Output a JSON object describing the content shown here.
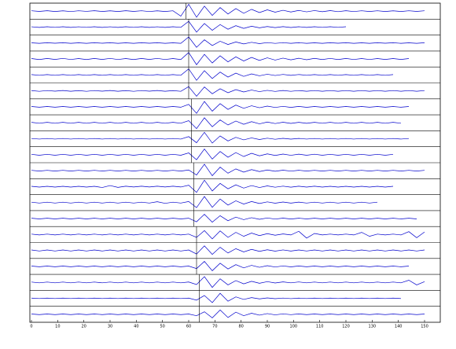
{
  "chart_data": {
    "type": "record-section",
    "x": [
      0,
      3,
      6,
      9,
      12,
      15,
      18,
      21,
      24,
      27,
      30,
      33,
      36,
      39,
      42,
      45,
      48,
      51,
      54,
      57,
      60,
      63,
      66,
      69,
      72,
      75,
      78,
      81,
      84,
      87,
      90,
      93,
      96,
      99,
      102,
      105,
      108,
      111,
      114,
      117,
      120,
      123,
      126,
      129,
      132,
      135,
      138,
      141,
      144,
      147,
      150
    ],
    "xlim": [
      0,
      156
    ],
    "ylim": [
      -1,
      1
    ],
    "xticks": [
      0,
      10,
      20,
      30,
      40,
      50,
      60,
      70,
      80,
      90,
      100,
      110,
      120,
      130,
      140,
      150
    ],
    "color": "#0000cc",
    "picks": [
      59,
      60,
      60,
      60,
      60,
      60,
      61,
      61,
      61,
      61,
      62,
      62,
      62,
      62,
      63,
      63,
      63,
      64,
      64,
      64
    ],
    "series": [
      {
        "values": [
          0.05,
          -0.04,
          0.06,
          -0.05,
          0.04,
          -0.06,
          0.05,
          -0.03,
          0.06,
          -0.05,
          0.04,
          -0.05,
          0.06,
          -0.04,
          0.05,
          -0.06,
          0.04,
          -0.05,
          0.05,
          -0.7,
          0.95,
          -0.85,
          0.7,
          -0.6,
          0.5,
          -0.4,
          0.35,
          -0.3,
          0.25,
          -0.2,
          0.18,
          -0.15,
          0.12,
          -0.12,
          0.1,
          -0.1,
          0.08,
          -0.08,
          0.07,
          -0.07,
          0.06,
          -0.06,
          0.05,
          -0.05,
          0.05,
          -0.05,
          0.04,
          -0.05,
          0.05,
          -0.04,
          0.05
        ]
      },
      {
        "values": [
          0.04,
          -0.05,
          0.05,
          -0.04,
          0.05,
          -0.05,
          0.04,
          -0.04,
          0.05,
          -0.05,
          0.04,
          -0.05,
          0.05,
          -0.04,
          0.05,
          -0.05,
          0.04,
          -0.05,
          0.05,
          -0.04,
          0.8,
          -0.7,
          0.5,
          -0.45,
          0.35,
          -0.3,
          0.2,
          -0.18,
          0.12,
          -0.1,
          0.08,
          -0.07,
          0.06,
          -0.06,
          0.05,
          -0.05,
          0.05,
          -0.04,
          0.05,
          -0.04,
          0.05,
          null,
          null,
          null,
          null,
          null,
          null,
          null,
          null,
          null,
          null
        ]
      },
      {
        "values": [
          0.03,
          -0.04,
          0.04,
          -0.03,
          0.04,
          -0.04,
          0.03,
          -0.04,
          0.04,
          -0.03,
          0.04,
          -0.04,
          0.03,
          -0.04,
          0.04,
          -0.03,
          0.04,
          -0.04,
          0.03,
          -0.04,
          0.85,
          -0.6,
          0.45,
          -0.35,
          0.25,
          -0.2,
          0.15,
          -0.12,
          0.1,
          -0.08,
          0.06,
          -0.05,
          0.05,
          -0.04,
          0.04,
          -0.04,
          0.03,
          -0.04,
          0.04,
          -0.03,
          0.04,
          -0.04,
          0.03,
          -0.04,
          0.04,
          -0.03,
          0.04,
          -0.04,
          0.03,
          -0.04,
          0.04
        ]
      },
      {
        "values": [
          0.06,
          -0.08,
          0.07,
          -0.06,
          0.08,
          -0.07,
          0.06,
          -0.08,
          0.07,
          -0.06,
          0.08,
          -0.07,
          0.06,
          -0.08,
          0.07,
          -0.06,
          0.08,
          -0.07,
          0.06,
          -0.08,
          0.9,
          -0.8,
          0.65,
          -0.55,
          0.45,
          -0.4,
          0.3,
          -0.28,
          0.22,
          -0.2,
          0.16,
          -0.15,
          0.12,
          -0.12,
          0.1,
          -0.1,
          0.09,
          -0.08,
          0.08,
          -0.08,
          0.07,
          -0.07,
          0.06,
          -0.07,
          0.06,
          -0.06,
          0.06,
          -0.06,
          0.06,
          null,
          null
        ]
      },
      {
        "values": [
          0.05,
          -0.05,
          0.05,
          -0.05,
          0.05,
          -0.05,
          0.05,
          -0.05,
          0.05,
          -0.05,
          0.05,
          -0.05,
          0.05,
          -0.05,
          0.05,
          -0.05,
          0.05,
          -0.05,
          0.05,
          -0.05,
          0.85,
          -0.75,
          0.6,
          -0.5,
          0.4,
          -0.3,
          0.25,
          -0.2,
          0.15,
          -0.12,
          0.1,
          -0.08,
          0.07,
          -0.06,
          0.06,
          -0.05,
          0.05,
          -0.05,
          0.05,
          -0.05,
          0.05,
          -0.05,
          0.05,
          -0.05,
          0.05,
          -0.05,
          0.05,
          null,
          null,
          null,
          null
        ]
      },
      {
        "values": [
          0.04,
          -0.06,
          0.05,
          -0.04,
          0.06,
          -0.05,
          0.04,
          -0.06,
          0.05,
          -0.04,
          0.06,
          -0.05,
          0.04,
          -0.06,
          0.05,
          -0.04,
          0.06,
          -0.05,
          0.04,
          -0.06,
          0.6,
          -0.75,
          0.55,
          -0.4,
          0.3,
          -0.25,
          0.18,
          -0.15,
          0.12,
          -0.1,
          0.08,
          -0.07,
          0.06,
          -0.06,
          0.05,
          -0.05,
          0.05,
          -0.05,
          0.05,
          -0.05,
          0.05,
          -0.05,
          0.05,
          -0.05,
          0.05,
          -0.05,
          0.05,
          -0.05,
          0.05,
          -0.05,
          0.05
        ]
      },
      {
        "values": [
          0.05,
          -0.05,
          0.05,
          -0.05,
          0.05,
          -0.05,
          0.05,
          -0.05,
          0.05,
          -0.05,
          0.05,
          -0.05,
          0.05,
          -0.05,
          0.05,
          -0.05,
          0.05,
          -0.05,
          0.05,
          -0.05,
          0.35,
          -0.9,
          0.75,
          -0.6,
          0.45,
          -0.35,
          0.25,
          -0.2,
          0.15,
          -0.12,
          0.1,
          -0.08,
          0.07,
          -0.07,
          0.06,
          -0.06,
          0.05,
          -0.05,
          0.05,
          -0.05,
          0.05,
          -0.05,
          0.05,
          -0.05,
          0.05,
          -0.05,
          0.05,
          -0.05,
          0.05,
          null,
          null
        ]
      },
      {
        "values": [
          0.07,
          -0.06,
          0.07,
          -0.06,
          0.07,
          -0.06,
          0.07,
          -0.06,
          0.07,
          -0.06,
          0.07,
          -0.06,
          0.07,
          -0.06,
          0.07,
          -0.06,
          0.07,
          -0.06,
          0.07,
          -0.06,
          0.3,
          -0.8,
          0.7,
          -0.55,
          0.4,
          -0.3,
          0.25,
          -0.2,
          0.16,
          -0.14,
          0.11,
          -0.1,
          0.08,
          -0.08,
          0.07,
          -0.07,
          0.07,
          -0.06,
          0.07,
          -0.06,
          0.07,
          -0.06,
          0.07,
          -0.06,
          0.07,
          -0.06,
          0.07,
          -0.06,
          null,
          null,
          null
        ]
      },
      {
        "values": [
          0.04,
          -0.04,
          0.04,
          -0.04,
          0.04,
          -0.04,
          0.04,
          -0.04,
          0.04,
          -0.04,
          0.04,
          -0.04,
          0.04,
          -0.04,
          0.04,
          -0.04,
          0.04,
          -0.04,
          0.04,
          -0.04,
          0.3,
          -0.55,
          0.9,
          -0.6,
          0.4,
          -0.3,
          0.2,
          -0.15,
          0.12,
          -0.1,
          0.08,
          -0.07,
          0.06,
          -0.05,
          0.05,
          -0.04,
          0.04,
          -0.04,
          0.04,
          -0.04,
          0.04,
          -0.04,
          0.04,
          -0.04,
          0.04,
          -0.04,
          0.04,
          -0.04,
          0.04,
          null,
          null
        ]
      },
      {
        "values": [
          0.06,
          -0.07,
          0.06,
          -0.07,
          0.06,
          -0.07,
          0.06,
          -0.07,
          0.06,
          -0.07,
          0.06,
          -0.07,
          0.06,
          -0.07,
          0.06,
          -0.07,
          0.06,
          -0.07,
          0.06,
          -0.07,
          0.25,
          -0.7,
          0.8,
          -0.6,
          0.45,
          -0.35,
          0.3,
          -0.25,
          0.2,
          -0.15,
          0.12,
          -0.1,
          0.09,
          -0.08,
          0.08,
          -0.07,
          0.07,
          -0.07,
          0.06,
          -0.07,
          0.06,
          -0.07,
          0.06,
          -0.07,
          0.06,
          -0.07,
          0.06,
          null,
          null,
          null,
          null
        ]
      },
      {
        "values": [
          0.05,
          -0.05,
          0.05,
          -0.05,
          0.05,
          -0.05,
          0.05,
          -0.05,
          0.05,
          -0.05,
          0.05,
          -0.05,
          0.05,
          -0.05,
          0.05,
          -0.05,
          0.05,
          -0.05,
          0.05,
          -0.05,
          0.1,
          -0.6,
          0.9,
          -0.7,
          0.5,
          -0.35,
          0.25,
          -0.2,
          0.15,
          -0.12,
          0.1,
          -0.08,
          0.07,
          -0.06,
          0.06,
          -0.05,
          0.05,
          -0.05,
          0.05,
          -0.05,
          0.05,
          -0.05,
          0.05,
          -0.05,
          0.05,
          -0.05,
          0.05,
          -0.05,
          0.05,
          -0.05,
          0.05
        ]
      },
      {
        "values": [
          0.05,
          -0.06,
          0.05,
          -0.06,
          0.05,
          -0.06,
          0.05,
          -0.06,
          0.05,
          -0.12,
          0.15,
          -0.1,
          0.06,
          -0.05,
          0.06,
          -0.05,
          0.06,
          -0.05,
          0.06,
          -0.05,
          0.2,
          -0.8,
          0.9,
          -0.6,
          0.45,
          -0.3,
          0.25,
          -0.2,
          0.15,
          -0.12,
          0.1,
          -0.08,
          0.07,
          -0.07,
          0.06,
          -0.06,
          0.06,
          -0.06,
          0.05,
          -0.06,
          0.05,
          -0.06,
          0.05,
          -0.06,
          0.05,
          -0.06,
          0.05,
          null,
          null,
          null,
          null
        ]
      },
      {
        "values": [
          0.06,
          -0.06,
          0.06,
          -0.06,
          0.06,
          -0.06,
          0.06,
          -0.06,
          0.06,
          -0.06,
          0.06,
          -0.06,
          0.06,
          -0.06,
          0.06,
          -0.06,
          0.12,
          -0.1,
          0.06,
          -0.06,
          0.15,
          -0.7,
          0.85,
          -0.65,
          0.5,
          -0.35,
          0.25,
          -0.2,
          0.15,
          -0.12,
          0.1,
          -0.08,
          0.08,
          -0.07,
          0.07,
          -0.06,
          0.06,
          -0.06,
          0.06,
          -0.06,
          0.06,
          -0.06,
          0.06,
          -0.06,
          0.06,
          null,
          null,
          null,
          null,
          null,
          null
        ]
      },
      {
        "values": [
          0.05,
          -0.05,
          0.05,
          -0.05,
          0.05,
          -0.05,
          0.05,
          -0.05,
          0.05,
          -0.05,
          0.05,
          -0.05,
          0.05,
          -0.05,
          0.05,
          -0.05,
          0.05,
          -0.05,
          0.05,
          -0.05,
          0.05,
          -0.45,
          0.6,
          -0.5,
          0.4,
          -0.3,
          0.2,
          -0.15,
          0.12,
          -0.1,
          0.08,
          -0.07,
          0.06,
          -0.06,
          0.05,
          -0.05,
          0.05,
          -0.05,
          0.05,
          -0.05,
          0.05,
          -0.05,
          0.05,
          -0.05,
          0.05,
          -0.05,
          0.05,
          -0.05,
          0.05,
          -0.05,
          null
        ]
      },
      {
        "values": [
          0.06,
          -0.06,
          0.06,
          -0.06,
          0.06,
          -0.06,
          0.06,
          -0.06,
          0.06,
          -0.06,
          0.06,
          -0.06,
          0.06,
          -0.06,
          0.06,
          -0.06,
          0.06,
          -0.06,
          0.06,
          -0.06,
          0.06,
          -0.4,
          0.55,
          -0.6,
          0.5,
          -0.4,
          0.3,
          -0.25,
          0.2,
          -0.15,
          0.12,
          -0.1,
          0.08,
          -0.06,
          0.45,
          -0.5,
          0.15,
          -0.06,
          0.06,
          -0.06,
          0.06,
          -0.06,
          0.3,
          -0.25,
          0.06,
          -0.06,
          0.06,
          -0.06,
          0.4,
          -0.45,
          0.35
        ]
      },
      {
        "values": [
          0.07,
          -0.07,
          0.07,
          -0.07,
          0.07,
          -0.07,
          0.07,
          -0.07,
          0.07,
          -0.07,
          0.07,
          -0.07,
          0.07,
          -0.07,
          0.07,
          -0.07,
          0.07,
          -0.07,
          0.07,
          -0.07,
          0.07,
          -0.5,
          0.65,
          -0.55,
          0.45,
          -0.35,
          0.25,
          -0.2,
          0.15,
          -0.12,
          0.1,
          -0.09,
          0.08,
          -0.08,
          0.07,
          -0.07,
          0.07,
          -0.07,
          0.07,
          -0.07,
          0.07,
          -0.07,
          0.07,
          -0.07,
          0.07,
          -0.07,
          0.07,
          -0.07,
          0.07,
          -0.07,
          0.07
        ]
      },
      {
        "values": [
          0.05,
          -0.05,
          0.05,
          -0.05,
          0.05,
          -0.05,
          0.05,
          -0.05,
          0.05,
          -0.05,
          0.05,
          -0.05,
          0.05,
          -0.05,
          0.05,
          -0.05,
          0.05,
          -0.05,
          0.05,
          -0.05,
          0.05,
          -0.3,
          0.7,
          -0.6,
          0.45,
          -0.35,
          0.25,
          -0.2,
          0.15,
          -0.12,
          0.1,
          -0.08,
          0.07,
          -0.06,
          0.06,
          -0.05,
          0.05,
          -0.05,
          0.05,
          -0.05,
          0.05,
          -0.05,
          0.05,
          -0.05,
          0.05,
          -0.05,
          0.05,
          -0.05,
          0.05,
          null,
          null
        ]
      },
      {
        "values": [
          0.05,
          -0.06,
          0.05,
          -0.06,
          0.05,
          -0.06,
          0.05,
          -0.06,
          0.05,
          -0.06,
          0.05,
          -0.06,
          0.05,
          -0.06,
          0.05,
          -0.06,
          0.05,
          -0.06,
          0.05,
          -0.06,
          0.05,
          -0.3,
          0.8,
          -0.7,
          0.5,
          -0.35,
          0.25,
          -0.2,
          0.15,
          -0.12,
          0.1,
          -0.08,
          0.07,
          -0.06,
          0.06,
          -0.06,
          0.05,
          -0.06,
          0.05,
          -0.06,
          0.05,
          -0.06,
          0.05,
          -0.06,
          0.05,
          -0.06,
          0.05,
          -0.06,
          0.3,
          -0.35,
          0.1
        ]
      },
      {
        "values": [
          0.03,
          -0.03,
          0.03,
          -0.03,
          0.03,
          -0.03,
          0.03,
          -0.03,
          0.03,
          -0.03,
          0.03,
          -0.03,
          0.03,
          -0.03,
          0.03,
          -0.03,
          0.03,
          -0.03,
          0.03,
          -0.03,
          0.03,
          -0.25,
          0.4,
          -0.6,
          0.7,
          -0.4,
          0.2,
          -0.15,
          0.1,
          -0.08,
          0.06,
          -0.05,
          0.04,
          -0.04,
          0.03,
          -0.03,
          0.03,
          -0.03,
          0.03,
          -0.03,
          0.03,
          -0.03,
          0.03,
          -0.03,
          0.03,
          -0.03,
          0.03,
          -0.03,
          null,
          null,
          null
        ]
      },
      {
        "values": [
          0.04,
          -0.04,
          0.04,
          -0.04,
          0.04,
          -0.04,
          0.04,
          -0.04,
          0.04,
          -0.04,
          0.04,
          -0.04,
          0.04,
          -0.04,
          0.04,
          -0.04,
          0.04,
          -0.04,
          0.04,
          -0.04,
          0.04,
          -0.2,
          0.35,
          -0.5,
          0.6,
          -0.45,
          0.3,
          -0.2,
          0.15,
          -0.12,
          0.1,
          -0.08,
          0.06,
          -0.05,
          0.05,
          -0.04,
          0.04,
          -0.04,
          0.04,
          -0.04,
          0.04,
          -0.04,
          0.04,
          -0.04,
          0.04,
          -0.04,
          0.04,
          -0.04,
          0.04,
          -0.04,
          0.04
        ]
      }
    ]
  }
}
